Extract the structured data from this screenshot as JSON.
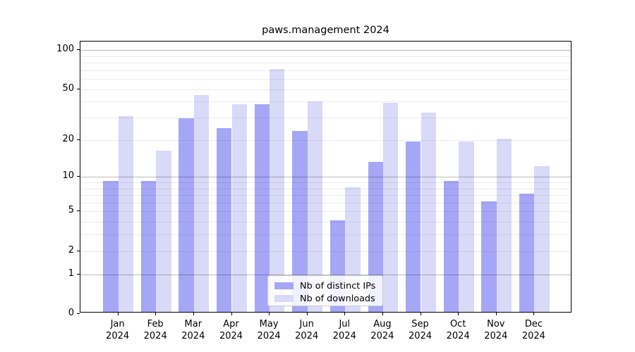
{
  "chart_data": {
    "type": "bar",
    "title": "paws.management 2024",
    "categories": [
      "Jan 2024",
      "Feb 2024",
      "Mar 2024",
      "Apr 2024",
      "May 2024",
      "Jun 2024",
      "Jul 2024",
      "Aug 2024",
      "Sep 2024",
      "Oct 2024",
      "Nov 2024",
      "Dec 2024"
    ],
    "series": [
      {
        "name": "Nb of distinct IPs",
        "color": "#a6a6f7",
        "values": [
          9,
          9,
          29,
          24,
          37,
          23,
          4,
          13,
          19,
          9,
          6,
          7
        ]
      },
      {
        "name": "Nb of downloads",
        "color": "#d9d9f8",
        "values": [
          30,
          16,
          44,
          37,
          70,
          39,
          8,
          38,
          32,
          19,
          20,
          12
        ]
      }
    ],
    "xlabel": "",
    "ylabel": "",
    "yscale": "log1p",
    "ylim": [
      0,
      100
    ],
    "y_tick_labels": [
      "100",
      "50",
      "20",
      "10",
      "5",
      "2",
      "1",
      "0"
    ],
    "y_major_gridlines": [
      1,
      10,
      100
    ],
    "y_minor_gridlines": [
      2,
      3,
      4,
      5,
      6,
      7,
      8,
      9,
      20,
      30,
      40,
      50,
      60,
      70,
      80,
      90
    ],
    "grid": "horizontal, drawn over bars",
    "legend_position": "lower center"
  },
  "legend": {
    "items": [
      {
        "label": "Nb of distinct IPs"
      },
      {
        "label": "Nb of downloads"
      }
    ]
  },
  "colors": {
    "bar_dark": "#a6a6f7",
    "bar_light": "#d9d9f8",
    "major_grid": "rgba(0,0,0,0.26)",
    "minor_grid": "rgba(0,0,0,0.07)",
    "spine": "#000000",
    "text": "#000000",
    "legend_border": "#cccccc"
  }
}
